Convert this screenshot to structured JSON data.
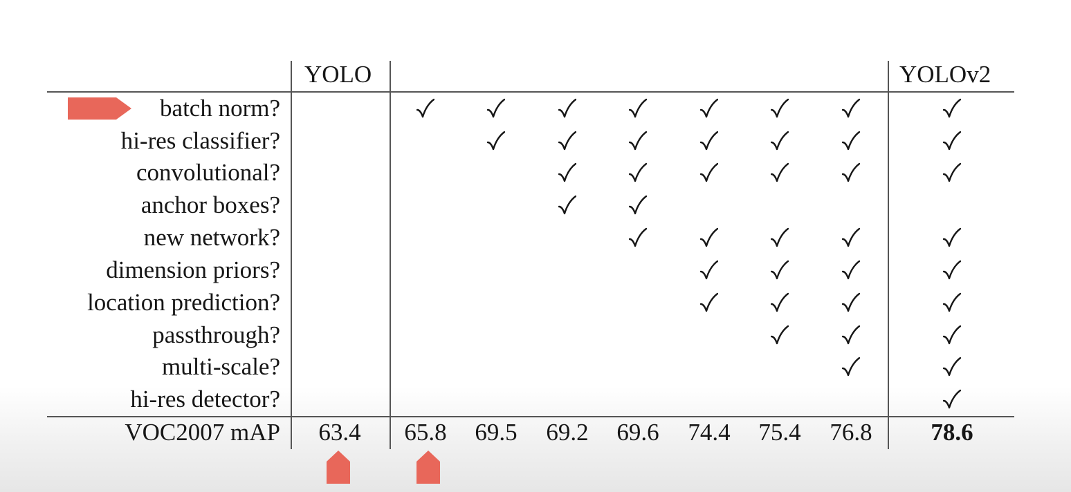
{
  "table": {
    "header": {
      "yolo": "YOLO",
      "yolov2": "YOLOv2"
    },
    "rows": [
      {
        "label": "batch norm?",
        "checks": [
          1,
          1,
          1,
          1,
          1,
          1,
          1,
          1
        ]
      },
      {
        "label": "hi-res classifier?",
        "checks": [
          0,
          1,
          1,
          1,
          1,
          1,
          1,
          1
        ]
      },
      {
        "label": "convolutional?",
        "checks": [
          0,
          0,
          1,
          1,
          1,
          1,
          1,
          1
        ]
      },
      {
        "label": "anchor boxes?",
        "checks": [
          0,
          0,
          1,
          1,
          0,
          0,
          0,
          0
        ]
      },
      {
        "label": "new network?",
        "checks": [
          0,
          0,
          0,
          1,
          1,
          1,
          1,
          1
        ]
      },
      {
        "label": "dimension priors?",
        "checks": [
          0,
          0,
          0,
          0,
          1,
          1,
          1,
          1
        ]
      },
      {
        "label": "location prediction?",
        "checks": [
          0,
          0,
          0,
          0,
          1,
          1,
          1,
          1
        ]
      },
      {
        "label": "passthrough?",
        "checks": [
          0,
          0,
          0,
          0,
          0,
          1,
          1,
          1
        ]
      },
      {
        "label": "multi-scale?",
        "checks": [
          0,
          0,
          0,
          0,
          0,
          0,
          1,
          1
        ]
      },
      {
        "label": "hi-res detector?",
        "checks": [
          0,
          0,
          0,
          0,
          0,
          0,
          0,
          1
        ]
      }
    ],
    "check_glyph": "checkmark-icon",
    "map_row": {
      "label": "VOC2007 mAP",
      "yolo": "63.4",
      "values": [
        "65.8",
        "69.5",
        "69.2",
        "69.6",
        "74.4",
        "75.4",
        "76.8"
      ],
      "yolov2": "78.6"
    }
  },
  "annotations": {
    "marker_color": "#e8675a",
    "pointed_row": "batch norm?",
    "pointed_values": [
      "63.4",
      "65.8"
    ]
  }
}
